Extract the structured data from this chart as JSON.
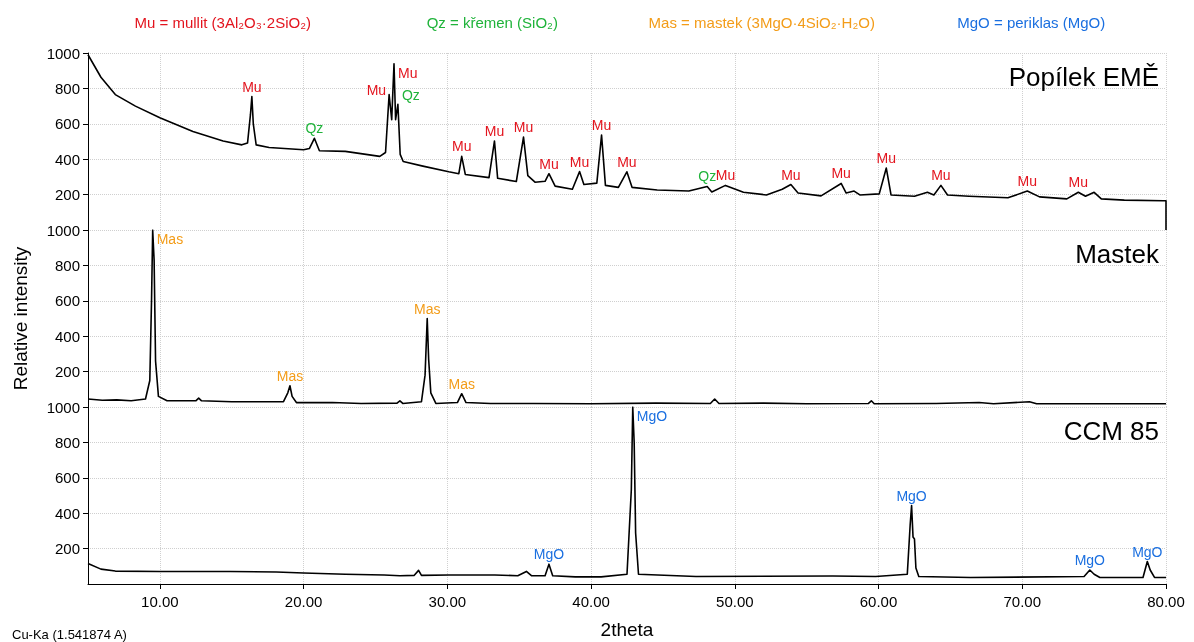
{
  "chart_data": [
    {
      "type": "line",
      "title": "Popílek EMĚ",
      "color": "#000000",
      "x": [
        5,
        5.9,
        6.9,
        8.3,
        10,
        12.3,
        14.4,
        15.7,
        16.1,
        16.3,
        16.4,
        16.5,
        16.7,
        17.6,
        20,
        20.4,
        20.75,
        21.1,
        22.9,
        25.3,
        25.7,
        25.95,
        26.13,
        26.29,
        26.4,
        26.56,
        26.72,
        26.93,
        28.3,
        30.1,
        30.8,
        31.0,
        31.25,
        32.9,
        33.28,
        33.5,
        34.8,
        35.3,
        35.6,
        36.1,
        36.8,
        37.07,
        37.5,
        38.7,
        39.2,
        39.5,
        40.4,
        40.73,
        41.0,
        41.9,
        42.49,
        42.85,
        44.6,
        46.8,
        48.08,
        48.4,
        49.35,
        50.6,
        52.2,
        53.3,
        53.9,
        54.4,
        56,
        57.4,
        57.75,
        58.3,
        58.7,
        60.05,
        60.54,
        60.87,
        62.5,
        63.4,
        63.85,
        64.34,
        64.8,
        66.3,
        69,
        70.35,
        71.2,
        73.1,
        73.9,
        74.4,
        75,
        75.5,
        77.1,
        79.8,
        80,
        80
      ],
      "values": [
        990,
        863,
        765,
        700,
        634,
        557,
        503,
        481,
        492,
        650,
        754,
        600,
        481,
        466,
        453,
        460,
        518,
        448,
        444,
        416,
        438,
        765,
        623,
        939,
        623,
        710,
        427,
        387,
        361,
        329,
        318,
        416,
        314,
        296,
        503,
        292,
        274,
        525,
        307,
        270,
        275,
        318,
        248,
        230,
        330,
        257,
        265,
        536,
        252,
        241,
        329,
        241,
        226,
        220,
        246,
        215,
        252,
        213,
        198,
        230,
        257,
        209,
        193,
        263,
        209,
        220,
        198,
        204,
        350,
        198,
        191,
        213,
        198,
        252,
        198,
        191,
        182,
        220,
        187,
        176,
        213,
        191,
        213,
        176,
        169,
        165,
        165,
        0
      ],
      "xlim": [
        5,
        80
      ],
      "xticks": [
        {
          "value": 10,
          "label": null
        },
        {
          "value": 20,
          "label": null
        },
        {
          "value": 30,
          "label": null
        },
        {
          "value": 40,
          "label": null
        },
        {
          "value": 50,
          "label": null
        },
        {
          "value": 60,
          "label": null
        },
        {
          "value": 70,
          "label": null
        },
        {
          "value": 80,
          "label": null
        }
      ],
      "ylim": [
        0,
        1000
      ],
      "yticks": [
        200,
        400,
        600,
        800,
        1000
      ],
      "grid": true,
      "tick_labels": "y",
      "annotations": [
        "Mu = mullit (3Al₂O₃·2SiO₂)",
        "Qz = křemen (SiO₂)",
        "Mas = mastek (3MgO·4SiO₂·H₂O)",
        "MgO = periklas (MgO)",
        {
          "text": "Mu",
          "x": 16.4,
          "y": 754
        },
        {
          "text": "Qz",
          "x": 20.75,
          "y": 518
        },
        {
          "text": "Mu",
          "x": 25.95,
          "y": 765
        },
        {
          "text": "Mu",
          "x": 26.29,
          "y": 939
        },
        {
          "text": "Qz",
          "x": 26.56,
          "y": 710
        },
        {
          "text": "Mu",
          "x": 31.0,
          "y": 416
        },
        {
          "text": "Mu",
          "x": 33.28,
          "y": 503
        },
        {
          "text": "Mu",
          "x": 35.3,
          "y": 525
        },
        {
          "text": "Mu",
          "x": 37.07,
          "y": 318
        },
        {
          "text": "Mu",
          "x": 39.2,
          "y": 330
        },
        {
          "text": "Mu",
          "x": 40.73,
          "y": 536
        },
        {
          "text": "Mu",
          "x": 42.49,
          "y": 329
        },
        {
          "text": "Qz",
          "x": 48.08,
          "y": 246
        },
        {
          "text": "Mu",
          "x": 49.35,
          "y": 252
        },
        {
          "text": "Mu",
          "x": 53.9,
          "y": 257
        },
        {
          "text": "Mu",
          "x": 57.4,
          "y": 263
        },
        {
          "text": "Mu",
          "x": 60.54,
          "y": 350
        },
        {
          "text": "Mu",
          "x": 64.34,
          "y": 252
        },
        {
          "text": "Mu",
          "x": 70.35,
          "y": 220
        },
        {
          "text": "Mu",
          "x": 73.9,
          "y": 213
        }
      ]
    },
    {
      "type": "line",
      "title": "Mastek",
      "ylabel": "Relative intensity",
      "color": "#000000",
      "x": [
        5,
        6,
        7,
        8,
        9,
        9.3,
        9.42,
        9.5,
        9.6,
        9.7,
        9.9,
        10.5,
        12.5,
        12.7,
        12.9,
        15,
        18.6,
        18.9,
        19.05,
        19.2,
        19.5,
        22,
        24,
        26.5,
        26.7,
        26.9,
        28.2,
        28.45,
        28.6,
        28.7,
        28.85,
        29.2,
        30.7,
        31,
        31.3,
        33,
        36,
        40,
        44.5,
        48.3,
        48.6,
        48.9,
        52,
        55,
        59.3,
        59.5,
        59.7,
        64,
        67,
        68,
        70.5,
        71,
        75,
        80
      ],
      "values": [
        45,
        38,
        40,
        35,
        45,
        150,
        600,
        1000,
        830,
        260,
        60,
        35,
        35,
        50,
        35,
        30,
        30,
        80,
        120,
        60,
        25,
        25,
        20,
        22,
        35,
        20,
        30,
        180,
        500,
        270,
        80,
        20,
        25,
        75,
        25,
        20,
        20,
        18,
        22,
        20,
        45,
        20,
        22,
        18,
        20,
        35,
        18,
        20,
        25,
        18,
        30,
        18,
        18,
        18
      ],
      "xlim": [
        5,
        80
      ],
      "xticks": [
        {
          "value": 10,
          "label": null
        },
        {
          "value": 20,
          "label": null
        },
        {
          "value": 30,
          "label": null
        },
        {
          "value": 40,
          "label": null
        },
        {
          "value": 50,
          "label": null
        },
        {
          "value": 60,
          "label": null
        },
        {
          "value": 70,
          "label": null
        },
        {
          "value": 80,
          "label": null
        }
      ],
      "ylim": [
        0,
        1000
      ],
      "yticks": [
        200,
        400,
        600,
        800,
        1000
      ],
      "grid": true,
      "tick_labels": "y",
      "annotations": [
        {
          "text": "Mas",
          "x": 9.5,
          "y": 1000
        },
        {
          "text": "Mas",
          "x": 19.05,
          "y": 120
        },
        {
          "text": "Mas",
          "x": 28.6,
          "y": 500
        },
        {
          "text": "Mas",
          "x": 31,
          "y": 75
        }
      ]
    },
    {
      "type": "line",
      "title": "CCM 85",
      "xlabel": "2theta",
      "color": "#000000",
      "x": [
        5,
        5.9,
        6.9,
        10,
        14.9,
        18.1,
        20,
        22.9,
        25.6,
        26.7,
        27.7,
        28.0,
        28.2,
        30.1,
        33.3,
        34.9,
        35.5,
        35.85,
        36.8,
        37.07,
        37.33,
        38.9,
        40.7,
        42.5,
        42.8,
        42.9,
        43.0,
        43.1,
        43.3,
        47.3,
        56.8,
        59.8,
        62.0,
        62.2,
        62.3,
        62.4,
        62.5,
        62.6,
        62.8,
        66.4,
        74.3,
        74.7,
        75.0,
        75.4,
        78.4,
        78.7,
        78.9,
        79.2,
        80
      ],
      "values": [
        116,
        84,
        73,
        71,
        71,
        68,
        62,
        55,
        51,
        47,
        49,
        77,
        49,
        51,
        51,
        47,
        71,
        47,
        47,
        112,
        47,
        40,
        40,
        55,
        531,
        1000,
        797,
        288,
        55,
        42,
        45,
        42,
        55,
        333,
        443,
        265,
        254,
        90,
        42,
        37,
        42,
        79,
        55,
        37,
        37,
        127,
        79,
        37,
        37
      ],
      "xlim": [
        5,
        80
      ],
      "xticks": [
        {
          "value": 10,
          "label": "10.00"
        },
        {
          "value": 20,
          "label": "20.00"
        },
        {
          "value": 30,
          "label": "30.00"
        },
        {
          "value": 40,
          "label": "40.00"
        },
        {
          "value": 50,
          "label": "50.00"
        },
        {
          "value": 60,
          "label": "60.00"
        },
        {
          "value": 70,
          "label": "70.00"
        },
        {
          "value": 80,
          "label": "80.00"
        }
      ],
      "ylim": [
        0,
        1000
      ],
      "yticks": [
        200,
        400,
        600,
        800,
        1000
      ],
      "grid": true,
      "annotations": [
        {
          "text": "MgO",
          "x": 37.07,
          "y": 112
        },
        {
          "text": "MgO",
          "x": 42.9,
          "y": 1000
        },
        {
          "text": "MgO",
          "x": 62.3,
          "y": 443
        },
        {
          "text": "MgO",
          "x": 74.7,
          "y": 79
        },
        {
          "text": "MgO",
          "x": 78.7,
          "y": 127
        },
        "Cu-Ka (1.541874 A)"
      ]
    }
  ]
}
